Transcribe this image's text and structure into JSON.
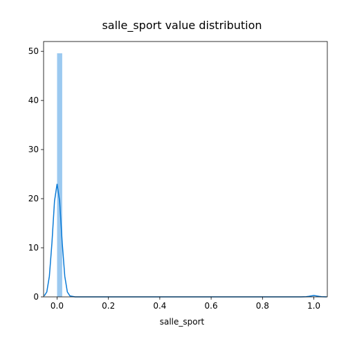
{
  "chart_data": {
    "type": "bar",
    "title": "salle_sport value distribution",
    "xlabel": "salle_sport",
    "ylabel": "",
    "xlim": [
      -0.0525,
      1.0525
    ],
    "ylim": [
      0,
      52
    ],
    "grid": false,
    "legend": "none",
    "x_ticks": [
      0.0,
      0.2,
      0.4,
      0.6,
      0.8,
      1.0
    ],
    "x_tick_labels": [
      "0.0",
      "0.2",
      "0.4",
      "0.6",
      "0.8",
      "1.0"
    ],
    "y_ticks": [
      0,
      10,
      20,
      30,
      40,
      50
    ],
    "y_tick_labels": [
      "0",
      "10",
      "20",
      "30",
      "40",
      "50"
    ],
    "histogram": {
      "bins": [
        {
          "x0": 0.0,
          "x1": 0.02,
          "value": 49.6
        },
        {
          "x0": 0.98,
          "x1": 1.0,
          "value": 0.1
        }
      ],
      "color": "#9bc9f0"
    },
    "kde": {
      "color": "#0a7ad6",
      "x": [
        -0.05,
        -0.04,
        -0.03,
        -0.02,
        -0.01,
        0.0,
        0.01,
        0.02,
        0.03,
        0.04,
        0.05,
        0.07,
        0.1,
        0.3,
        0.5,
        0.7,
        0.9,
        0.95,
        0.97,
        0.98,
        0.99,
        1.0,
        1.01,
        1.02,
        1.03,
        1.05
      ],
      "y": [
        0.2,
        1.0,
        4.2,
        11.0,
        19.5,
        23.0,
        19.5,
        11.0,
        4.2,
        1.0,
        0.2,
        0.0,
        0.0,
        0.0,
        0.0,
        0.0,
        0.0,
        0.0,
        0.03,
        0.1,
        0.2,
        0.28,
        0.2,
        0.1,
        0.03,
        0.0
      ]
    }
  }
}
